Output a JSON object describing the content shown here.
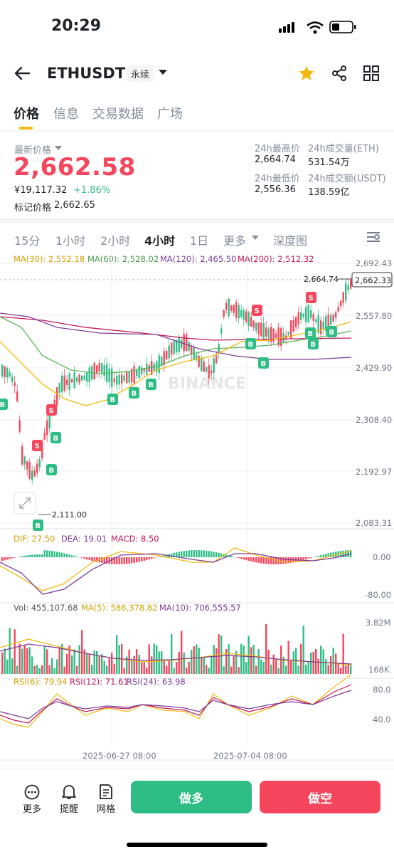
{
  "status_bar": {
    "time": "20:29"
  },
  "header": {
    "symbol": "ETHUSDT",
    "contract_type": "永续",
    "icons": [
      "back-arrow-icon",
      "chevron-down-icon",
      "star-icon",
      "share-icon",
      "grid-icon"
    ]
  },
  "tabs": [
    {
      "label": "价格",
      "active": true
    },
    {
      "label": "信息",
      "active": false
    },
    {
      "label": "交易数据",
      "active": false
    },
    {
      "label": "广场",
      "active": false
    }
  ],
  "price": {
    "last_price_label": "最新价格",
    "last_price": "2,662.58",
    "cny_price": "¥19,117.32",
    "change_pct": "+1.86%",
    "mark_price_label": "标记价格",
    "mark_price": "2,662.65"
  },
  "stats": {
    "high_label": "24h最高价",
    "high": "2,664.74",
    "vol_eth_label": "24h成交量(ETH)",
    "vol_eth": "531.54万",
    "low_label": "24h最低价",
    "low": "2,556.36",
    "vol_usdt_label": "24h成交额(USDT)",
    "vol_usdt": "138.59亿"
  },
  "timeframes": [
    {
      "label": "15分",
      "active": false
    },
    {
      "label": "1小时",
      "active": false
    },
    {
      "label": "2小时",
      "active": false
    },
    {
      "label": "4小时",
      "active": true
    },
    {
      "label": "1日",
      "active": false
    },
    {
      "label": "更多",
      "active": false
    },
    {
      "label": "深度图",
      "active": false
    }
  ],
  "ma_legend": {
    "ma30": "MA(30): 2,552.18",
    "ma60": "MA(60): 2,528.02",
    "ma120": "MA(120): 2,465.50",
    "ma200": "MA(200): 2,512.32"
  },
  "price_axis": [
    "2,692.43",
    "2,557.80",
    "2,429.90",
    "2,308.40",
    "2,192.97",
    "2,083.31"
  ],
  "current_price_tag": "2,662.33",
  "high_marker": "2,664.74",
  "low_marker": "2,111.00",
  "watermark": "BINANCE",
  "macd": {
    "dif": "DIF: 27.50",
    "dea": "DEA: 19.01",
    "macd": "MACD: 8.50",
    "axis": [
      "0.00",
      "-80.00"
    ]
  },
  "volume": {
    "vol": "Vol: 455,107.68",
    "ma5": "MA(5): 586,378.82",
    "ma10": "MA(10): 706,555.57",
    "axis": [
      "3.82M",
      "168K"
    ]
  },
  "rsi": {
    "rsi6": "RSI(6): 79.94",
    "rsi12": "RSI(12): 71.61",
    "rsi24": "RSI(24): 63.98",
    "axis": [
      "80.0",
      "40.0"
    ]
  },
  "dates": [
    "2025-06-27 08:00",
    "2025-07-04 08:00"
  ],
  "bottom_nav": [
    {
      "label": "更多",
      "icon": "more-dots-icon"
    },
    {
      "label": "提醒",
      "icon": "bell-icon"
    },
    {
      "label": "网格",
      "icon": "grid-doc-icon"
    }
  ],
  "actions": {
    "long": "做多",
    "short": "做空"
  },
  "colors": {
    "up": "#2ebd85",
    "down": "#f6465d",
    "accent": "#f0b90b",
    "ma30": "#f0b90b",
    "ma60": "#5ab45a",
    "ma120": "#7d3c98",
    "ma200": "#c2185b"
  }
}
